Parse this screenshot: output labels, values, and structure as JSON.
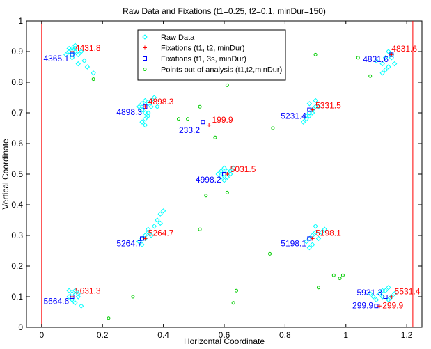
{
  "chart_data": {
    "type": "scatter",
    "title": "Raw Data and Fixations  (t1=0.25, t2=0.1, minDur=150)",
    "xlabel": "Horizontal Coordinate",
    "ylabel": "Vertical Coordinate",
    "xlim": [
      -0.05,
      1.25
    ],
    "ylim": [
      0,
      1
    ],
    "xticks": [
      "0",
      "0.2",
      "0.4",
      "0.6",
      "0.8",
      "1",
      "1.2"
    ],
    "xtick_values": [
      0,
      0.2,
      0.4,
      0.6,
      0.8,
      1.0,
      1.2
    ],
    "yticks": [
      "0",
      "0.1",
      "0.2",
      "0.3",
      "0.4",
      "0.5",
      "0.6",
      "0.7",
      "0.8",
      "0.9",
      "1"
    ],
    "ytick_values": [
      0,
      0.1,
      0.2,
      0.3,
      0.4,
      0.5,
      0.6,
      0.7,
      0.8,
      0.9,
      1.0
    ],
    "grid": false,
    "legend_position": "top-center",
    "colors": {
      "raw": "#00ffff",
      "fix_t1t2": "#ff0000",
      "fix_3s": "#0000ff",
      "out": "#00cc00",
      "vertical_line": "#ff0000"
    },
    "vertical_lines_x": [
      0,
      1.22
    ],
    "series": [
      {
        "name": "Raw Data",
        "marker": "diamond",
        "x": [
          0.08,
          0.09,
          0.1,
          0.11,
          0.12,
          0.1,
          0.09,
          0.11,
          0.13,
          0.14,
          0.1,
          0.12,
          0.15,
          0.17,
          0.09,
          0.11,
          0.32,
          0.33,
          0.34,
          0.35,
          0.36,
          0.34,
          0.33,
          0.35,
          0.37,
          0.34,
          0.33,
          0.36,
          0.38,
          0.35,
          0.34,
          0.33,
          0.59,
          0.6,
          0.61,
          0.62,
          0.6,
          0.59,
          0.61,
          0.62,
          0.6,
          0.58,
          0.63,
          0.87,
          0.88,
          0.89,
          0.9,
          0.88,
          0.89,
          0.87,
          0.9,
          0.86,
          0.88,
          0.91,
          1.1,
          1.12,
          1.13,
          1.14,
          1.15,
          1.14,
          1.13,
          1.16,
          1.12,
          1.15,
          0.32,
          0.33,
          0.34,
          0.35,
          0.34,
          0.36,
          0.33,
          0.35,
          0.37,
          0.38,
          0.39,
          0.4,
          0.39,
          0.87,
          0.88,
          0.89,
          0.9,
          0.89,
          0.88,
          0.91,
          0.92,
          0.9,
          0.93,
          0.09,
          0.1,
          0.11,
          0.12,
          0.1,
          0.11,
          0.09,
          0.12,
          0.13,
          1.08,
          1.09,
          1.1,
          1.11,
          1.12,
          1.13,
          1.14,
          1.15,
          1.16,
          1.12,
          1.14
        ],
        "y": [
          0.89,
          0.9,
          0.91,
          0.9,
          0.89,
          0.88,
          0.91,
          0.92,
          0.9,
          0.87,
          0.89,
          0.86,
          0.85,
          0.83,
          0.9,
          0.91,
          0.72,
          0.73,
          0.74,
          0.73,
          0.72,
          0.7,
          0.71,
          0.69,
          0.75,
          0.68,
          0.67,
          0.74,
          0.72,
          0.7,
          0.66,
          0.71,
          0.49,
          0.5,
          0.51,
          0.5,
          0.52,
          0.51,
          0.49,
          0.51,
          0.48,
          0.5,
          0.52,
          0.69,
          0.7,
          0.71,
          0.72,
          0.73,
          0.7,
          0.68,
          0.74,
          0.67,
          0.69,
          0.72,
          0.87,
          0.86,
          0.88,
          0.85,
          0.89,
          0.9,
          0.84,
          0.86,
          0.83,
          0.88,
          0.28,
          0.29,
          0.3,
          0.31,
          0.29,
          0.3,
          0.27,
          0.32,
          0.33,
          0.35,
          0.37,
          0.38,
          0.34,
          0.28,
          0.29,
          0.3,
          0.31,
          0.27,
          0.26,
          0.29,
          0.31,
          0.33,
          0.32,
          0.1,
          0.11,
          0.12,
          0.1,
          0.09,
          0.08,
          0.12,
          0.11,
          0.07,
          0.11,
          0.1,
          0.09,
          0.11,
          0.1,
          0.12,
          0.09,
          0.1,
          0.11,
          0.12,
          0.13
        ]
      },
      {
        "name": "Fixations (t1, t2, minDur)",
        "marker": "plus",
        "x": [
          0.1,
          0.34,
          0.55,
          0.61,
          0.89,
          1.15,
          0.34,
          0.89,
          0.1,
          1.11,
          1.15
        ],
        "y": [
          0.9,
          0.72,
          0.66,
          0.5,
          0.71,
          0.89,
          0.29,
          0.29,
          0.1,
          0.07,
          0.1
        ],
        "labels": [
          "4431.8",
          "4898.3",
          "199.9",
          "5031.5",
          "5331.5",
          "4831.6",
          "5264.7",
          "5198.1",
          "5631.3",
          "299.9",
          "5531.4"
        ]
      },
      {
        "name": "Fixations (t1, 3s, minDur)",
        "marker": "square",
        "x": [
          0.1,
          0.34,
          0.53,
          0.6,
          0.88,
          1.15,
          0.33,
          0.88,
          0.1,
          1.1,
          1.13
        ],
        "y": [
          0.89,
          0.72,
          0.67,
          0.5,
          0.71,
          0.89,
          0.29,
          0.29,
          0.1,
          0.07,
          0.1
        ],
        "labels": [
          "4365.1",
          "4898.3",
          "233.2",
          "4998.2",
          "5231.4",
          "4831.6",
          "5264.7",
          "5198.1",
          "5664.6",
          "299.9",
          "5931.3"
        ]
      },
      {
        "name": "Points out of analysis (t1,t2,minDur)",
        "marker": "circle",
        "x": [
          0.17,
          0.61,
          0.52,
          0.48,
          0.54,
          0.61,
          0.52,
          0.75,
          0.96,
          0.98,
          0.99,
          0.91,
          0.3,
          0.22,
          0.63,
          0.64,
          0.9,
          1.08,
          1.04,
          0.76,
          0.57,
          0.45
        ],
        "y": [
          0.81,
          0.79,
          0.72,
          0.68,
          0.43,
          0.44,
          0.32,
          0.24,
          0.17,
          0.16,
          0.17,
          0.13,
          0.1,
          0.03,
          0.08,
          0.12,
          0.89,
          0.82,
          0.88,
          0.65,
          0.62,
          0.68
        ]
      }
    ],
    "annotations": [
      {
        "text": "4431.8",
        "x": 0.11,
        "y": 0.902,
        "color": "red",
        "anchor": "start"
      },
      {
        "text": "4365.1",
        "x": 0.09,
        "y": 0.868,
        "color": "blue",
        "anchor": "end"
      },
      {
        "text": "4898.3",
        "x": 0.35,
        "y": 0.727,
        "color": "red",
        "anchor": "start"
      },
      {
        "text": "4898.3",
        "x": 0.33,
        "y": 0.693,
        "color": "blue",
        "anchor": "end"
      },
      {
        "text": "199.9",
        "x": 0.56,
        "y": 0.668,
        "color": "red",
        "anchor": "start"
      },
      {
        "text": "233.2",
        "x": 0.52,
        "y": 0.634,
        "color": "blue",
        "anchor": "end"
      },
      {
        "text": "5031.5",
        "x": 0.62,
        "y": 0.507,
        "color": "red",
        "anchor": "start"
      },
      {
        "text": "4998.2",
        "x": 0.59,
        "y": 0.473,
        "color": "blue",
        "anchor": "end"
      },
      {
        "text": "5331.5",
        "x": 0.9,
        "y": 0.715,
        "color": "red",
        "anchor": "start"
      },
      {
        "text": "5231.4",
        "x": 0.87,
        "y": 0.681,
        "color": "blue",
        "anchor": "end"
      },
      {
        "text": "4831.6",
        "x": 1.15,
        "y": 0.9,
        "color": "red",
        "anchor": "start"
      },
      {
        "text": "4831.6",
        "x": 1.14,
        "y": 0.866,
        "color": "blue",
        "anchor": "end"
      },
      {
        "text": "5264.7",
        "x": 0.35,
        "y": 0.299,
        "color": "red",
        "anchor": "start"
      },
      {
        "text": "5264.7",
        "x": 0.33,
        "y": 0.265,
        "color": "blue",
        "anchor": "end"
      },
      {
        "text": "5198.1",
        "x": 0.9,
        "y": 0.299,
        "color": "red",
        "anchor": "start"
      },
      {
        "text": "5198.1",
        "x": 0.87,
        "y": 0.265,
        "color": "blue",
        "anchor": "end"
      },
      {
        "text": "5631.3",
        "x": 0.11,
        "y": 0.11,
        "color": "red",
        "anchor": "start"
      },
      {
        "text": "5664.6",
        "x": 0.09,
        "y": 0.076,
        "color": "blue",
        "anchor": "end"
      },
      {
        "text": "5931.3",
        "x": 1.12,
        "y": 0.105,
        "color": "blue",
        "anchor": "end"
      },
      {
        "text": "5531.4",
        "x": 1.16,
        "y": 0.108,
        "color": "red",
        "anchor": "start"
      },
      {
        "text": "299.9",
        "x": 1.09,
        "y": 0.063,
        "color": "blue",
        "anchor": "end"
      },
      {
        "text": "299.9",
        "x": 1.12,
        "y": 0.063,
        "color": "red",
        "anchor": "start"
      }
    ]
  }
}
